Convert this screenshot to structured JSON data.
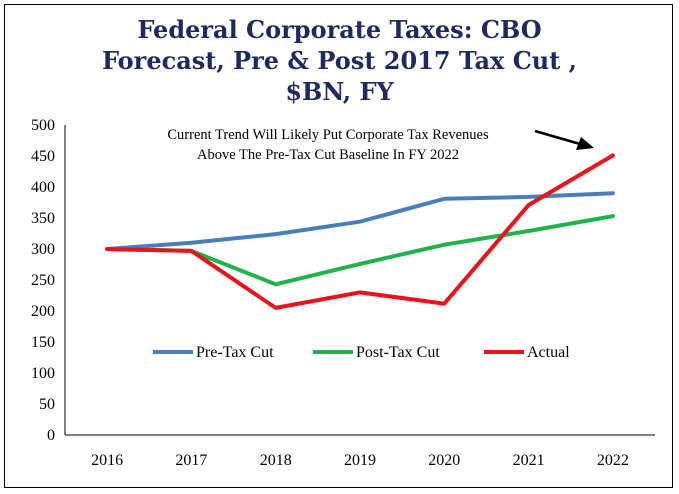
{
  "chart_data": {
    "type": "line",
    "title_lines": [
      "Federal Corporate Taxes: CBO",
      "Forecast, Pre & Post 2017 Tax Cut ,",
      "$BN, FY"
    ],
    "categories": [
      "2016",
      "2017",
      "2018",
      "2019",
      "2020",
      "2021",
      "2022"
    ],
    "ylim": [
      0,
      500
    ],
    "yticks": [
      "0",
      "50",
      "100",
      "150",
      "200",
      "250",
      "300",
      "350",
      "400",
      "450",
      "500"
    ],
    "grid": false,
    "legend_placement": "middle",
    "annotation_lines": [
      "Current Trend Will Likely Put Corporate Tax Revenues",
      "Above The Pre-Tax Cut Baseline In FY 2022"
    ],
    "series": [
      {
        "name": "Pre-Tax Cut",
        "color": "#4a7ebb",
        "values": [
          300,
          310,
          324,
          344,
          381,
          384,
          390
        ]
      },
      {
        "name": "Post-Tax Cut",
        "color": "#22b14c",
        "values": [
          300,
          297,
          243,
          276,
          307,
          329,
          353
        ]
      },
      {
        "name": "Actual",
        "color": "#e8141b",
        "values": [
          300,
          297,
          205,
          230,
          212,
          371,
          451
        ]
      }
    ]
  }
}
